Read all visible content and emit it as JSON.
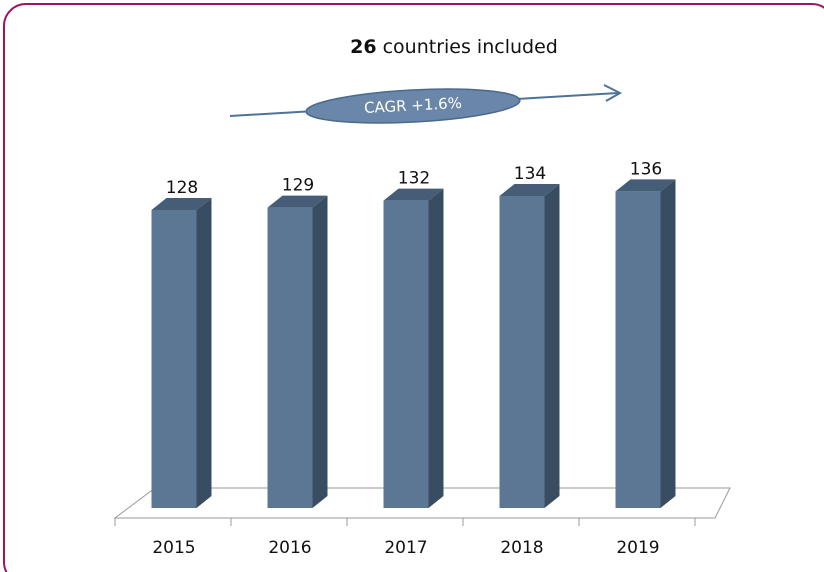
{
  "chart_data": {
    "type": "bar",
    "title_bold": "26",
    "title": "countries included",
    "annotation": "CAGR +1.6%",
    "categories": [
      "2015",
      "2016",
      "2017",
      "2018",
      "2019"
    ],
    "values": [
      128,
      129,
      132,
      134,
      136
    ],
    "color": "#5b7794",
    "ylim": [
      0,
      140
    ]
  }
}
